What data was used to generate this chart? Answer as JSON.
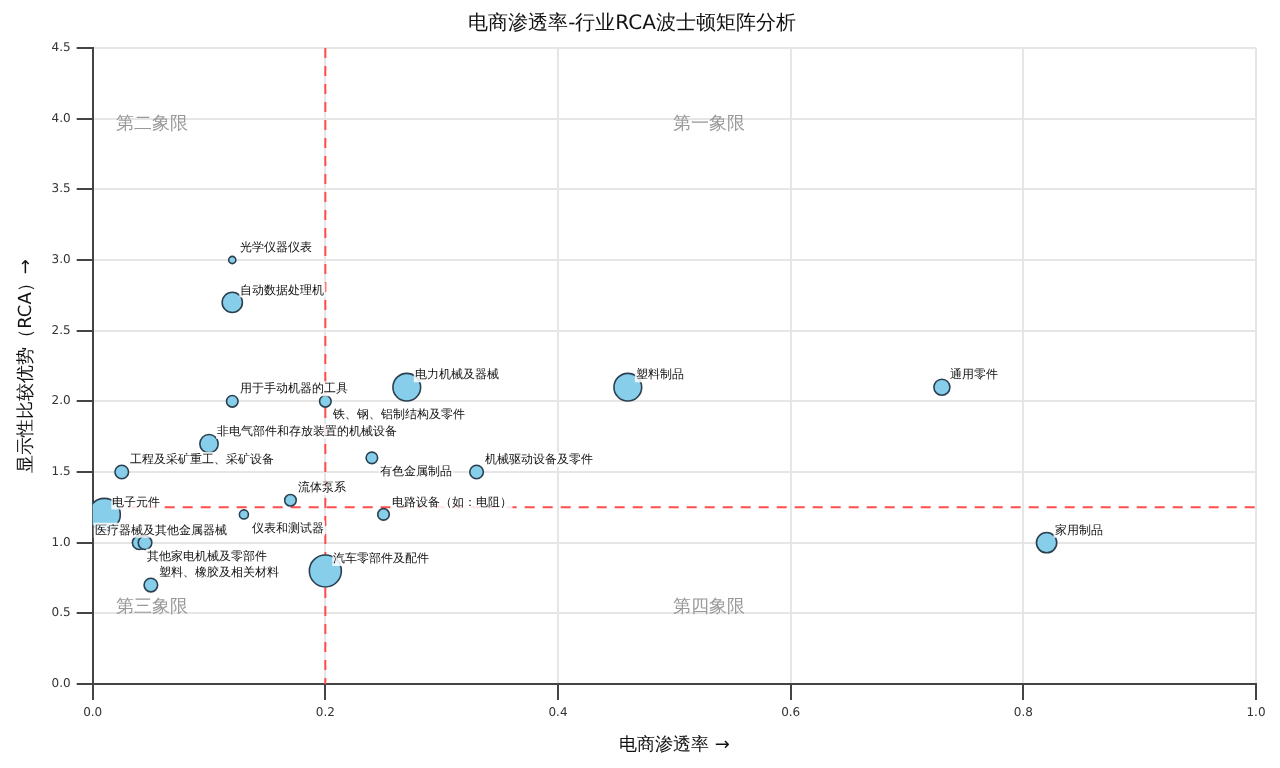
{
  "chart_data": {
    "type": "bubble",
    "title": "电商渗透率-行业RCA波士顿矩阵分析",
    "xlabel": "电商渗透率 →",
    "ylabel": "显示性比较优势（RCA）→",
    "xlim": [
      0,
      1
    ],
    "xticks": [
      {
        "value": 0,
        "label": "0.0"
      },
      0.2,
      0.4,
      0.6,
      0.8,
      {
        "value": 1,
        "label": "1.0"
      }
    ],
    "ylim": [
      0,
      4.5
    ],
    "yticks": [
      {
        "value": 0,
        "label": "0.0"
      },
      0.5,
      {
        "value": 1,
        "label": "1.0"
      },
      1.5,
      {
        "value": 2,
        "label": "2.0"
      },
      2.5,
      {
        "value": 3,
        "label": "3.0"
      },
      3.5,
      {
        "value": 4,
        "label": "4.0"
      },
      4.5
    ],
    "grid": true,
    "marker": "circle",
    "series": [
      {
        "color": "#87ceeb",
        "x": [
          0.12,
          0.12,
          0.12,
          0.2,
          0.27,
          0.46,
          0.73,
          0.82,
          0.1,
          0.24,
          0.33,
          0.025,
          0.17,
          0.01,
          0.13,
          0.25,
          0.04,
          0.045,
          0.05,
          0.2
        ],
        "values": [
          3.0,
          2.7,
          2.0,
          2.0,
          2.1,
          2.1,
          2.1,
          1.0,
          1.7,
          1.6,
          1.5,
          1.5,
          1.3,
          1.2,
          1.2,
          1.2,
          1.0,
          1.0,
          0.7,
          0.8
        ],
        "sizes": [
          0.05,
          0.4,
          0.13,
          0.13,
          0.75,
          0.75,
          0.25,
          0.4,
          0.33,
          0.13,
          0.18,
          0.18,
          0.13,
          1,
          0.08,
          0.13,
          0.18,
          0.18,
          0.18,
          1
        ]
      }
    ],
    "ref_lines": [
      {
        "axis": "x",
        "value": 0.2,
        "color": "#ff4d4d",
        "line_style": "dashed"
      },
      {
        "axis": "y",
        "value": 1.25,
        "color": "#ff4d4d",
        "line_style": "dashed"
      }
    ],
    "annotations": [
      "第二象限",
      "第一象限",
      "第三象限",
      "第四象限",
      {
        "text": "光学仪器仪表",
        "x": 0.12,
        "y": 3.0
      },
      {
        "text": "自动数据处理机",
        "x": 0.12,
        "y": 2.7
      },
      {
        "text": "用于手动机器的工具",
        "x": 0.12,
        "y": 2.0
      },
      {
        "text": "铁、钢、铝制结构及零件",
        "x": 0.2,
        "y": 2.0
      },
      {
        "text": "电力机械及器械",
        "x": 0.27,
        "y": 2.1
      },
      {
        "text": "塑料制品",
        "x": 0.46,
        "y": 2.1
      },
      {
        "text": "通用零件",
        "x": 0.73,
        "y": 2.1
      },
      {
        "text": "家用制品",
        "x": 0.82,
        "y": 1.0
      },
      {
        "text": "非电气部件和存放装置的机械设备",
        "x": 0.1,
        "y": 1.7
      },
      {
        "text": "有色金属制品",
        "x": 0.24,
        "y": 1.6
      },
      {
        "text": "机械驱动设备及零件",
        "x": 0.33,
        "y": 1.5
      },
      {
        "text": "工程及采矿重工、采矿设备",
        "x": 0.025,
        "y": 1.5
      },
      {
        "text": "流体泵系",
        "x": 0.17,
        "y": 1.3
      },
      {
        "text": "电子元件",
        "x": 0.01,
        "y": 1.2
      },
      {
        "text": "仪表和测试器",
        "x": 0.13,
        "y": 1.2
      },
      {
        "text": "电路设备（如：电阻）",
        "x": 0.25,
        "y": 1.2
      },
      {
        "text": "其他家电机械及零部件",
        "x": 0.04,
        "y": 1.0
      },
      {
        "text": "医疗器械及其他金属器械",
        "x": 0.045,
        "y": 1.0
      },
      {
        "text": "塑料、橡胶及相关材料",
        "x": 0.05,
        "y": 0.7
      },
      {
        "text": "汽车零部件及配件",
        "x": 0.2,
        "y": 0.8
      }
    ]
  }
}
